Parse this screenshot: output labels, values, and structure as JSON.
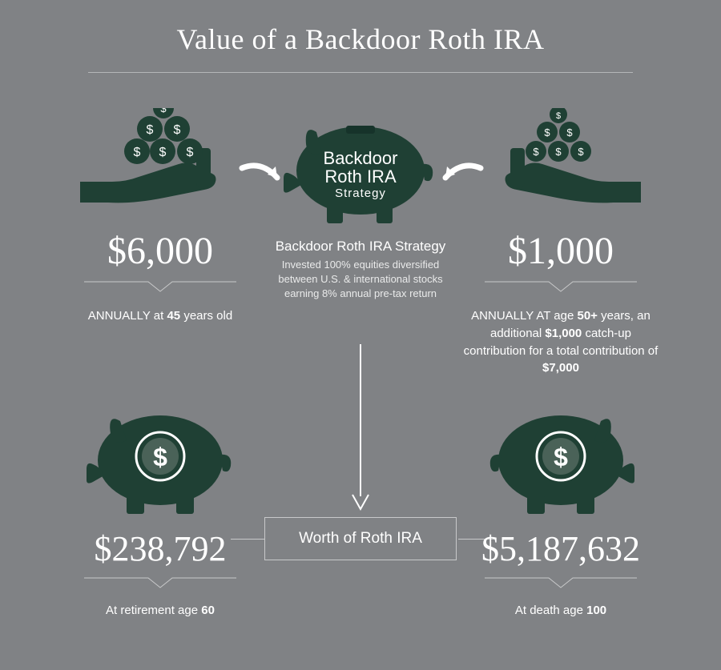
{
  "colors": {
    "background": "#808285",
    "text": "#ffffff",
    "subtext": "#e9eaea",
    "divider": "#b5b6b8",
    "piggy_fill": "#1f4034",
    "piggy_dark": "#16332a",
    "coin_fill": "#ffffff",
    "coin_text": "#3d5a4e",
    "box_border": "#c8c9ca"
  },
  "title": "Value of a Backdoor Roth IRA",
  "top": {
    "left": {
      "amount": "$6,000",
      "label_html": "ANNUALLY at <b>45</b> years old"
    },
    "mid": {
      "piggy_line1": "Backdoor",
      "piggy_line2": "Roth IRA",
      "piggy_line3": "Strategy",
      "title": "Backdoor Roth IRA Strategy",
      "desc": "Invested 100% equities diversified between U.S. & international stocks earning 8% annual pre-tax return"
    },
    "right": {
      "amount": "$1,000",
      "label_html": "ANNUALLY AT age <b>50+</b> years, an additional <b>$1,000</b> catch-up contribution for a total contribution of <b>$7,000</b>"
    }
  },
  "bottom": {
    "left": {
      "amount": "$238,792",
      "label_html": "At retirement age <b>60</b>"
    },
    "right": {
      "amount": "$5,187,632",
      "label_html": "At death age <b>100</b>"
    },
    "worth_label": "Worth of Roth IRA"
  },
  "styling": {
    "title_fontsize": 36,
    "amount_fontsize": 48,
    "result_amount_fontsize": 44,
    "label_fontsize": 15,
    "mid_title_fontsize": 17,
    "mid_desc_fontsize": 13,
    "piggy_label_fontsize": 22,
    "worth_box_fontsize": 19,
    "piggy_big_width": 200,
    "piggy_mid_width": 220
  }
}
